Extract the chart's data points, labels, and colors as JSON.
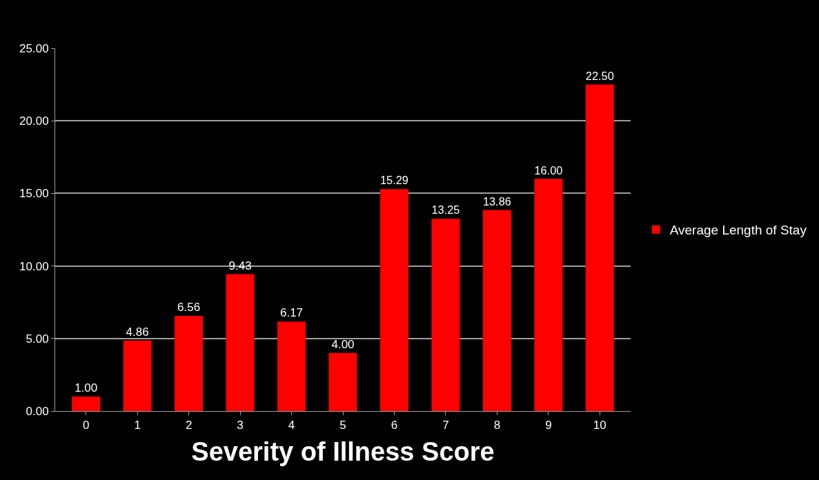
{
  "chart_data": {
    "type": "bar",
    "xlabel": "Severity of Illness Score",
    "categories": [
      "0",
      "1",
      "2",
      "3",
      "4",
      "5",
      "6",
      "7",
      "8",
      "9",
      "10"
    ],
    "series": [
      {
        "name": "Average Length of Stay",
        "color": "#ff0000",
        "values": [
          1.0,
          4.86,
          6.56,
          9.43,
          6.17,
          4.0,
          15.29,
          13.25,
          13.86,
          16.0,
          22.5
        ],
        "value_labels": [
          "1.00",
          "4.86",
          "6.56",
          "9.43",
          "6.17",
          "4.00",
          "15.29",
          "13.25",
          "13.86",
          "16.00",
          "22.50"
        ]
      }
    ],
    "ylim": [
      0,
      25
    ],
    "yticks": [
      {
        "value": 0,
        "label": "0.00"
      },
      {
        "value": 5,
        "label": "5.00"
      },
      {
        "value": 10,
        "label": "10.00"
      },
      {
        "value": 15,
        "label": "15.00"
      },
      {
        "value": 20,
        "label": "20.00"
      },
      {
        "value": 25,
        "label": "25.00"
      }
    ],
    "grid": "y",
    "legend": "right"
  }
}
